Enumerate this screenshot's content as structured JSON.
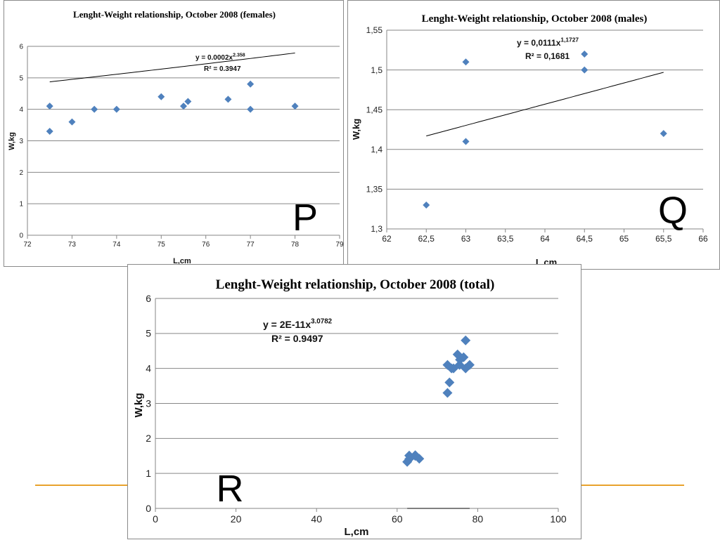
{
  "colors": {
    "marker": "#4F81BD",
    "grid": "#868686",
    "trend": "#000000",
    "accent_line": "#E8A22C"
  },
  "chart_data": [
    {
      "id": "P",
      "type": "scatter",
      "title": "Lenght-Weight relationship,  October 2008 (females)",
      "xlabel": "L,cm",
      "ylabel": "W,kg",
      "xlim": [
        72,
        79
      ],
      "ylim": [
        0,
        6
      ],
      "xticks": [
        "72",
        "73",
        "74",
        "75",
        "76",
        "77",
        "78",
        "79"
      ],
      "yticks": [
        "0",
        "1",
        "2",
        "3",
        "4",
        "5",
        "6"
      ],
      "grid": "horizontal",
      "points": [
        [
          72.5,
          3.3
        ],
        [
          72.5,
          4.1
        ],
        [
          73,
          3.6
        ],
        [
          73.5,
          4.0
        ],
        [
          74,
          4.0
        ],
        [
          75,
          4.4
        ],
        [
          75.5,
          4.1
        ],
        [
          75.6,
          4.25
        ],
        [
          76.5,
          4.32
        ],
        [
          77,
          4.8
        ],
        [
          77,
          4.0
        ],
        [
          78,
          4.1
        ]
      ],
      "trendline": {
        "a": 0.0002,
        "b": 2.358,
        "x_range": [
          72.5,
          78
        ]
      },
      "equation": "y = 0.0002x",
      "equation_exp": "2.358",
      "r2": "R² = 0.3947",
      "panel_label": "P"
    },
    {
      "id": "Q",
      "type": "scatter",
      "title": "Lenght-Weight relationship, October 2008 (males)",
      "xlabel": "L,cm",
      "ylabel": "W,kg",
      "xlim": [
        62,
        66
      ],
      "ylim": [
        1.3,
        1.55
      ],
      "xticks": [
        "62",
        "62,5",
        "63",
        "63,5",
        "64",
        "64,5",
        "65",
        "65,5",
        "66"
      ],
      "yticks": [
        "1,3",
        "1,35",
        "1,4",
        "1,45",
        "1,5",
        "1,55"
      ],
      "grid": "horizontal",
      "points": [
        [
          62.5,
          1.33
        ],
        [
          63,
          1.51
        ],
        [
          63,
          1.41
        ],
        [
          64.5,
          1.52
        ],
        [
          64.5,
          1.5
        ],
        [
          65.5,
          1.42
        ]
      ],
      "trendline": {
        "a": 0.0111,
        "b": 1.1727,
        "x_range": [
          62.5,
          65.5
        ]
      },
      "equation": "y = 0,0111x",
      "equation_exp": "1,1727",
      "r2": "R² = 0,1681",
      "panel_label": "Q"
    },
    {
      "id": "R",
      "type": "scatter",
      "title": "Lenght-Weight relationship, October 2008 (total)",
      "xlabel": "L,cm",
      "ylabel": "W,kg",
      "xlim": [
        0,
        100
      ],
      "ylim": [
        0,
        6
      ],
      "xticks": [
        "0",
        "20",
        "40",
        "60",
        "80",
        "100"
      ],
      "yticks": [
        "0",
        "1",
        "2",
        "3",
        "4",
        "5",
        "6"
      ],
      "grid": "horizontal",
      "points": [
        [
          62.5,
          1.33
        ],
        [
          63,
          1.51
        ],
        [
          63,
          1.41
        ],
        [
          64.5,
          1.52
        ],
        [
          64.5,
          1.5
        ],
        [
          65.5,
          1.42
        ],
        [
          72.5,
          3.3
        ],
        [
          72.5,
          4.1
        ],
        [
          73,
          3.6
        ],
        [
          73.5,
          4.0
        ],
        [
          74,
          4.0
        ],
        [
          75,
          4.4
        ],
        [
          75.5,
          4.1
        ],
        [
          75.6,
          4.25
        ],
        [
          76.5,
          4.32
        ],
        [
          77,
          4.8
        ],
        [
          77,
          4.0
        ],
        [
          78,
          4.1
        ]
      ],
      "trendline": {
        "a": 2e-11,
        "b": 3.0782,
        "x_range": [
          62.5,
          78
        ]
      },
      "equation": "y = 2E-11x",
      "equation_exp": "3.0782",
      "r2": "R² = 0.9497",
      "panel_label": "R"
    }
  ]
}
